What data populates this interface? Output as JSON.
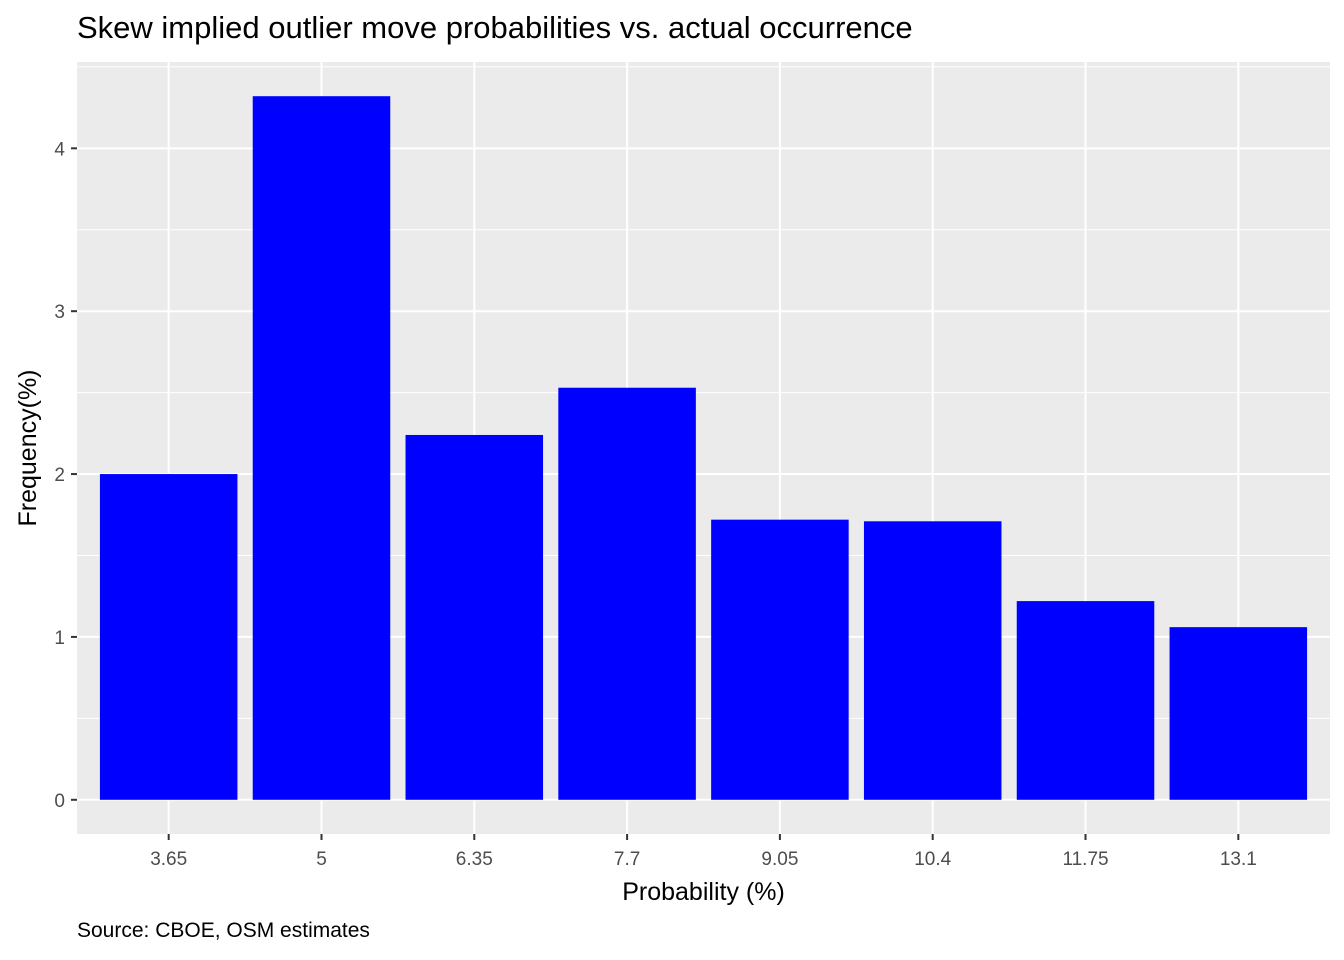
{
  "chart_data": {
    "type": "bar",
    "title": "Skew implied outlier move probabilities vs. actual occurrence",
    "xlabel": "Probability (%)",
    "ylabel": "Frequency(%)",
    "caption": "Source: CBOE, OSM estimates",
    "categories": [
      "3.65",
      "5",
      "6.35",
      "7.7",
      "9.05",
      "10.4",
      "11.75",
      "13.1"
    ],
    "values": [
      2.0,
      4.32,
      2.24,
      2.53,
      1.72,
      1.71,
      1.22,
      1.06
    ],
    "yticks": [
      0,
      1,
      2,
      3,
      4
    ],
    "ylim": [
      -0.21,
      4.53
    ],
    "grid": true,
    "bar_color": "#0000ff",
    "panel_color": "#ebebeb",
    "grid_color": "#ffffff"
  }
}
